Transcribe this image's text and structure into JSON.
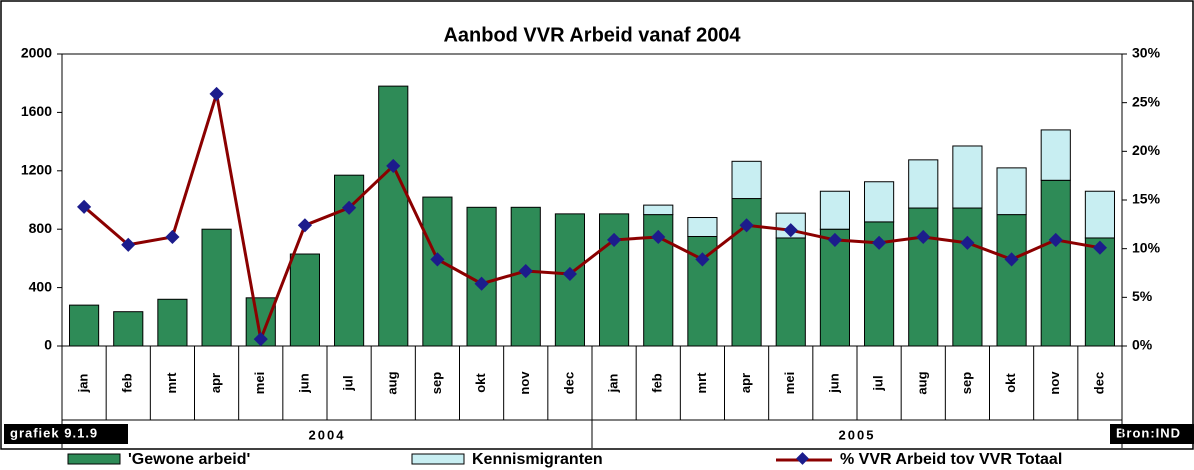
{
  "chart_data": {
    "type": "bar-line",
    "title": "Aanbod VVR Arbeid vanaf 2004",
    "categories": [
      "jan",
      "feb",
      "mrt",
      "apr",
      "mei",
      "jun",
      "jul",
      "aug",
      "sep",
      "okt",
      "nov",
      "dec",
      "jan",
      "feb",
      "mrt",
      "apr",
      "mei",
      "jun",
      "jul",
      "aug",
      "sep",
      "okt",
      "nov",
      "dec"
    ],
    "groups": [
      "2004",
      "2005"
    ],
    "series": [
      {
        "name": "'Gewone arbeid'",
        "color": "#2e8b57",
        "values": [
          280,
          235,
          320,
          800,
          330,
          630,
          1170,
          1780,
          1020,
          950,
          950,
          905,
          905,
          900,
          750,
          1010,
          740,
          800,
          850,
          945,
          945,
          900,
          1135,
          740
        ]
      },
      {
        "name": "Kennismigranten",
        "color": "#c8eef2",
        "values": [
          0,
          0,
          0,
          0,
          0,
          0,
          0,
          0,
          0,
          0,
          0,
          0,
          0,
          65,
          130,
          255,
          170,
          260,
          275,
          330,
          425,
          320,
          345,
          320
        ]
      },
      {
        "name": "% VVR Arbeid tov VVR Totaal",
        "color": "#8b0000",
        "marker_color": "#1c1c8c",
        "axis": "y2",
        "values": [
          14.3,
          10.4,
          11.2,
          25.9,
          0.7,
          12.4,
          14.2,
          18.5,
          8.9,
          6.4,
          7.7,
          7.4,
          10.9,
          11.2,
          8.9,
          12.4,
          11.9,
          10.9,
          10.6,
          11.2,
          10.6,
          8.9,
          10.9,
          10.1
        ]
      }
    ],
    "ylim": [
      0,
      2000
    ],
    "yticks": [
      0,
      400,
      800,
      1200,
      1600,
      2000
    ],
    "y2lim": [
      0,
      30
    ],
    "y2ticks": [
      {
        "value": 0,
        "label": "0%"
      },
      {
        "value": 5,
        "label": "5%"
      },
      {
        "value": 10,
        "label": "10%"
      },
      {
        "value": 15,
        "label": "15%"
      },
      {
        "value": 20,
        "label": "20%"
      },
      {
        "value": 25,
        "label": "25%"
      },
      {
        "value": 30,
        "label": "30%"
      }
    ],
    "caption": "grafiek 9.1.9",
    "source": "Bron:IND"
  }
}
